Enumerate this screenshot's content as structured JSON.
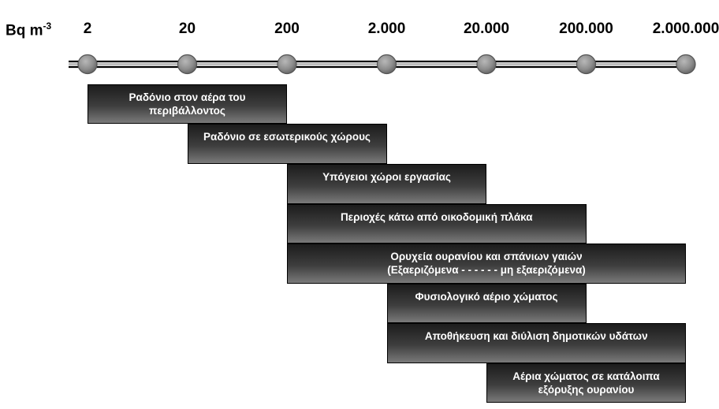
{
  "unit": {
    "base": "Bq m",
    "exponent": "-3"
  },
  "scale": {
    "ticks": [
      {
        "value": 2,
        "label": "2"
      },
      {
        "value": 20,
        "label": "20"
      },
      {
        "value": 200,
        "label": "200"
      },
      {
        "value": 2000,
        "label": "2.000"
      },
      {
        "value": 20000,
        "label": "20.000"
      },
      {
        "value": 200000,
        "label": "200.000"
      },
      {
        "value": 2000000,
        "label": "2.000.000"
      }
    ]
  },
  "ranges": [
    {
      "lines": [
        "Ραδόνιο στον αέρα του",
        "περιβάλλοντος"
      ],
      "from": 2,
      "to": 200
    },
    {
      "lines": [
        "Ραδόνιο σε εσωτερικούς χώρους"
      ],
      "from": 20,
      "to": 2000
    },
    {
      "lines": [
        "Υπόγειοι χώροι εργασίας"
      ],
      "from": 200,
      "to": 20000
    },
    {
      "lines": [
        "Περιοχές κάτω από οικοδομική πλάκα"
      ],
      "from": 200,
      "to": 200000
    },
    {
      "lines": [
        "Ορυχεία ουρανίου και σπάνιων γαιών",
        "(Εξαεριζόμενα - - - - - - μη εξαεριζόμενα)"
      ],
      "from": 200,
      "to": 2000000
    },
    {
      "lines": [
        "Φυσιολογικό αέριο χώματος"
      ],
      "from": 2000,
      "to": 200000
    },
    {
      "lines": [
        "Αποθήκευση και διύλιση δημοτικών υδάτων"
      ],
      "from": 2000,
      "to": 2000000
    },
    {
      "lines": [
        "Αέρια χώματος σε κατάλοιπα",
        "εξόρυξης ουρανίου"
      ],
      "from": 20000,
      "to": 2000000
    }
  ]
}
